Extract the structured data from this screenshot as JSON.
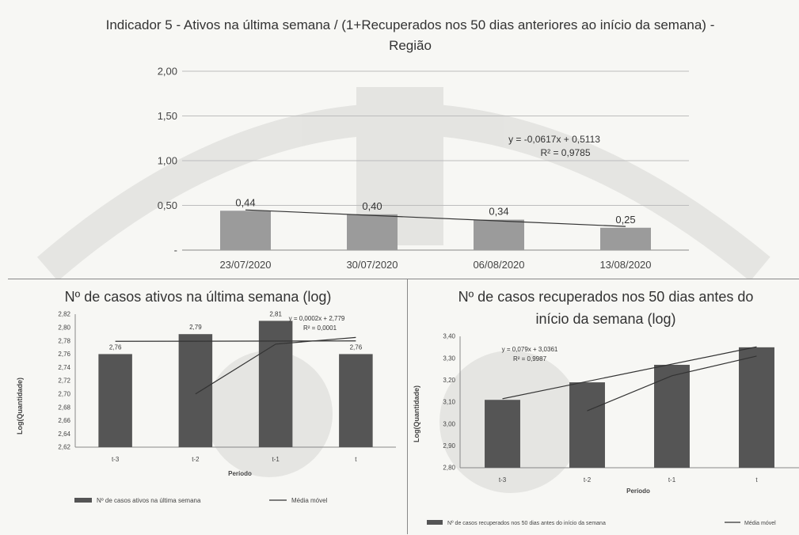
{
  "charts": {
    "top": {
      "title_line1": "Indicador 5 - Ativos na última semana / (1+Recuperados nos 50 dias anteriores ao início da semana) -",
      "title_line2": "Região",
      "trendline_eq": "y = -0,0617x + 0,5113",
      "trendline_r2": "R² = 0,9785"
    },
    "bottom_left": {
      "title": "Nº de casos ativos na última semana (log)",
      "ylabel": "Log(Quantidade)",
      "xlabel": "Período",
      "trendline_eq": "y = 0,0002x + 2,779",
      "trendline_r2": "R² = 0,0001",
      "legend_bar": "Nº de casos ativos na última semana",
      "legend_line": "Média móvel"
    },
    "bottom_right": {
      "title_line1": "Nº de casos recuperados nos 50 dias antes do",
      "title_line2": "início da semana (log)",
      "ylabel": "Log(Quantidade)",
      "xlabel": "Período",
      "trendline_eq": "y = 0,079x + 3,0361",
      "trendline_r2": "R² = 0,9987",
      "legend_bar": "Nº de casos recuperados nos 50 dias antes do início da semana",
      "legend_line": "Média móvel"
    }
  },
  "colors": {
    "bar_top": "#9b9b9b",
    "bar_bottom": "#555555",
    "grid": "#bdbdbd",
    "line": "#333333"
  },
  "chart_data": [
    {
      "type": "bar",
      "categories": [
        "23/07/2020",
        "30/07/2020",
        "06/08/2020",
        "13/08/2020"
      ],
      "values": [
        0.44,
        0.4,
        0.34,
        0.25
      ],
      "data_labels": [
        "0,44",
        "0,40",
        "0,34",
        "0,25"
      ],
      "ylim": [
        0,
        2
      ],
      "yticks": [
        "-",
        "0,50",
        "1,00",
        "1,50",
        "2,00"
      ],
      "trendline": {
        "slope": -0.0617,
        "intercept": 0.5113
      },
      "grid": true
    },
    {
      "type": "bar",
      "categories": [
        "t-3",
        "t-2",
        "t-1",
        "t"
      ],
      "values": [
        2.76,
        2.79,
        2.81,
        2.76
      ],
      "data_labels": [
        "2,76",
        "2,79",
        "2,81",
        "2,76"
      ],
      "ylim": [
        2.62,
        2.82
      ],
      "yticks": [
        "2,62",
        "2,64",
        "2,66",
        "2,68",
        "2,70",
        "2,72",
        "2,74",
        "2,76",
        "2,78",
        "2,80",
        "2,82"
      ],
      "moving_average": [
        null,
        2.7,
        2.775,
        2.785
      ],
      "trendline": {
        "slope": 0.0002,
        "intercept": 2.779
      },
      "legend_position": "bottom",
      "grid": false
    },
    {
      "type": "bar",
      "categories": [
        "t-3",
        "t-2",
        "t-1",
        "t"
      ],
      "values": [
        3.11,
        3.19,
        3.27,
        3.35
      ],
      "ylim": [
        2.8,
        3.4
      ],
      "yticks": [
        "2,80",
        "2,90",
        "3,00",
        "3,10",
        "3,20",
        "3,30",
        "3,40"
      ],
      "moving_average": [
        null,
        3.06,
        3.22,
        3.31
      ],
      "trendline": {
        "slope": 0.079,
        "intercept": 3.0361
      },
      "legend_position": "bottom",
      "grid": false
    }
  ]
}
